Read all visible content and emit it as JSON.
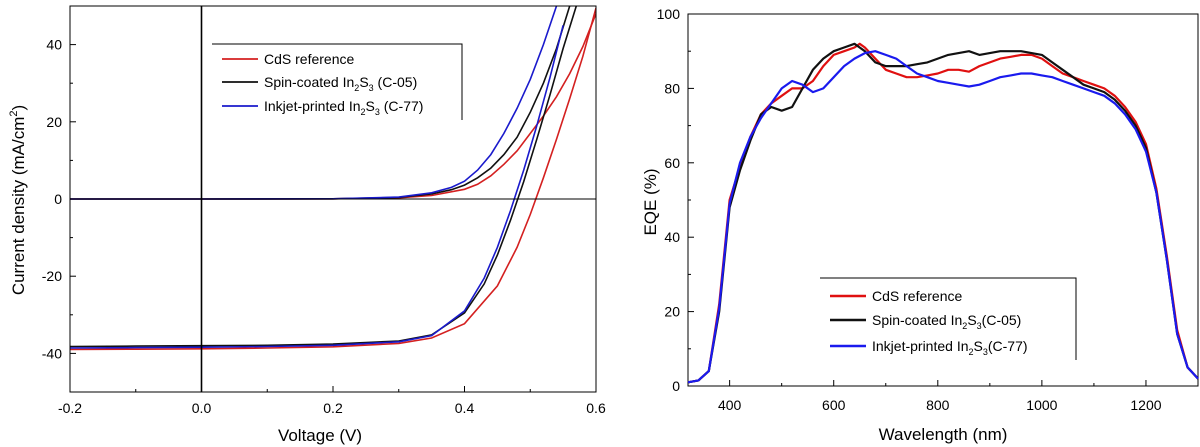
{
  "chart_data": [
    {
      "type": "line",
      "title": "",
      "xlabel": "Voltage (V)",
      "ylabel": "Current density (mA/cm²)",
      "ylabel_parts": {
        "main": "Current density (mA/cm",
        "sup": "2",
        "tail": ")"
      },
      "xlim": [
        -0.2,
        0.6
      ],
      "ylim": [
        -50,
        50
      ],
      "xticks": [
        -0.2,
        0.0,
        0.2,
        0.4,
        0.6
      ],
      "xtick_labels": [
        "-0.2",
        "0.0",
        "0.2",
        "0.4",
        "0.6"
      ],
      "yticks": [
        -40,
        -20,
        0,
        20,
        40
      ],
      "ytick_labels": [
        "-40",
        "-20",
        "0",
        "20",
        "40"
      ],
      "grid": false,
      "zero_lines": true,
      "legend_position": "top-right",
      "series": [
        {
          "name": "CdS reference",
          "legend_parts": [
            {
              "t": "CdS reference"
            }
          ],
          "color": "#d42020",
          "light": {
            "x": [
              -0.2,
              -0.1,
              0,
              0.1,
              0.2,
              0.3,
              0.35,
              0.4,
              0.45,
              0.48,
              0.5,
              0.52,
              0.54,
              0.56,
              0.58,
              0.6
            ],
            "y": [
              -39,
              -38.9,
              -38.8,
              -38.6,
              -38.3,
              -37.4,
              -36.0,
              -32.3,
              -22.5,
              -12.5,
              -4.0,
              5.5,
              15.5,
              26.0,
              37.0,
              49.5
            ]
          },
          "dark": {
            "x": [
              -0.2,
              0,
              0.2,
              0.3,
              0.35,
              0.4,
              0.42,
              0.44,
              0.46,
              0.48,
              0.5,
              0.52,
              0.54,
              0.56,
              0.58,
              0.6
            ],
            "y": [
              0,
              0,
              0.05,
              0.3,
              0.9,
              2.5,
              3.8,
              6.0,
              9.0,
              12.5,
              17.0,
              21.5,
              26.5,
              32.5,
              39.5,
              48.0
            ]
          }
        },
        {
          "name": "Spin-coated In2S3 (C-05)",
          "legend_parts": [
            {
              "t": "Spin-coated In"
            },
            {
              "t": "2",
              "sub": true
            },
            {
              "t": "S"
            },
            {
              "t": "3",
              "sub": true
            },
            {
              "t": " (C-05)"
            }
          ],
          "color": "#111111",
          "light": {
            "x": [
              -0.2,
              -0.1,
              0,
              0.1,
              0.2,
              0.3,
              0.35,
              0.4,
              0.43,
              0.45,
              0.47,
              0.49,
              0.51,
              0.53,
              0.55,
              0.57
            ],
            "y": [
              -38.2,
              -38.1,
              -38.0,
              -37.9,
              -37.6,
              -36.8,
              -35.2,
              -29.5,
              -22.0,
              -14.5,
              -5.5,
              4.5,
              15.5,
              27.0,
              39.0,
              50.0
            ]
          },
          "dark": {
            "x": [
              -0.2,
              0,
              0.2,
              0.3,
              0.35,
              0.38,
              0.4,
              0.42,
              0.44,
              0.46,
              0.48,
              0.5,
              0.52,
              0.54,
              0.56
            ],
            "y": [
              0,
              0,
              0.05,
              0.4,
              1.3,
              2.4,
              3.6,
              5.5,
              8.0,
              11.5,
              16.0,
              22.5,
              30.0,
              39.0,
              50.0
            ]
          }
        },
        {
          "name": "Inkjet-printed In2S3 (C-77)",
          "legend_parts": [
            {
              "t": "Inkjet-printed In"
            },
            {
              "t": "2",
              "sub": true
            },
            {
              "t": "S"
            },
            {
              "t": "3",
              "sub": true
            },
            {
              "t": " (C-77)"
            }
          ],
          "color": "#1a1acc",
          "light": {
            "x": [
              -0.2,
              -0.1,
              0,
              0.1,
              0.2,
              0.3,
              0.35,
              0.4,
              0.43,
              0.45,
              0.47,
              0.49,
              0.51,
              0.53,
              0.55
            ],
            "y": [
              -38.6,
              -38.5,
              -38.4,
              -38.2,
              -37.9,
              -37.0,
              -35.4,
              -29.0,
              -20.5,
              -12.5,
              -3.0,
              7.5,
              19.0,
              31.5,
              45.0
            ]
          },
          "dark": {
            "x": [
              -0.2,
              0,
              0.2,
              0.3,
              0.35,
              0.38,
              0.4,
              0.42,
              0.44,
              0.46,
              0.48,
              0.5,
              0.52,
              0.54
            ],
            "y": [
              0,
              0,
              0.05,
              0.5,
              1.6,
              3.0,
              4.6,
              7.5,
              11.5,
              17.0,
              23.5,
              31.0,
              40.0,
              50.0
            ]
          }
        }
      ]
    },
    {
      "type": "line",
      "title": "",
      "xlabel": "Wavelength (nm)",
      "ylabel": "EQE (%)",
      "xlim": [
        320,
        1300
      ],
      "ylim": [
        0,
        100
      ],
      "xticks": [
        400,
        600,
        800,
        1000,
        1200
      ],
      "xtick_labels": [
        "400",
        "600",
        "800",
        "1000",
        "1200"
      ],
      "yticks": [
        0,
        20,
        40,
        60,
        80,
        100
      ],
      "ytick_labels": [
        "0",
        "20",
        "40",
        "60",
        "80",
        "100"
      ],
      "grid": false,
      "legend_position": "bottom-center",
      "series": [
        {
          "name": "CdS reference",
          "legend_parts": [
            {
              "t": "CdS reference"
            }
          ],
          "color": "#e01010",
          "x": [
            320,
            340,
            360,
            380,
            400,
            420,
            440,
            460,
            480,
            500,
            520,
            540,
            560,
            580,
            600,
            620,
            640,
            650,
            660,
            680,
            700,
            720,
            740,
            760,
            780,
            800,
            820,
            840,
            860,
            880,
            900,
            920,
            940,
            960,
            980,
            1000,
            1020,
            1040,
            1060,
            1080,
            1100,
            1120,
            1140,
            1160,
            1180,
            1200,
            1220,
            1240,
            1260,
            1280,
            1300
          ],
          "y": [
            1,
            1.5,
            4,
            22,
            50,
            59,
            67,
            73,
            76,
            78,
            80,
            80,
            82,
            86,
            89,
            90,
            91,
            92,
            91,
            88,
            85,
            84,
            83,
            83,
            83.5,
            84,
            85,
            85,
            84.5,
            86,
            87,
            88,
            88.5,
            89,
            89,
            88,
            86,
            84,
            83,
            82,
            81,
            80,
            78,
            75,
            71,
            65,
            53,
            35,
            15,
            5,
            2
          ]
        },
        {
          "name": "Spin-coated In2S3(C-05)",
          "legend_parts": [
            {
              "t": "Spin-coated In"
            },
            {
              "t": "2",
              "sub": true
            },
            {
              "t": "S"
            },
            {
              "t": "3",
              "sub": true
            },
            {
              "t": "(C-05)"
            }
          ],
          "color": "#111111",
          "x": [
            320,
            340,
            360,
            380,
            400,
            420,
            440,
            460,
            480,
            500,
            520,
            540,
            560,
            580,
            600,
            620,
            640,
            650,
            660,
            680,
            700,
            720,
            740,
            760,
            780,
            800,
            820,
            840,
            860,
            880,
            900,
            920,
            940,
            960,
            980,
            1000,
            1020,
            1040,
            1060,
            1080,
            1100,
            1120,
            1140,
            1160,
            1180,
            1200,
            1220,
            1240,
            1260,
            1280,
            1300
          ],
          "y": [
            1,
            1.5,
            4,
            20,
            48,
            58,
            66,
            73,
            75,
            74,
            75,
            80,
            85,
            88,
            90,
            91,
            92,
            91,
            90,
            87,
            86,
            86,
            86,
            86.5,
            87,
            88,
            89,
            89.5,
            90,
            89,
            89.5,
            90,
            90,
            90,
            89.5,
            89,
            87,
            85,
            83,
            81,
            80,
            79,
            77,
            74,
            70,
            64,
            52,
            34,
            14,
            5,
            2
          ]
        },
        {
          "name": "Inkjet-printed In2S3(C-77)",
          "legend_parts": [
            {
              "t": "Inkjet-printed In"
            },
            {
              "t": "2",
              "sub": true
            },
            {
              "t": "S"
            },
            {
              "t": "3",
              "sub": true
            },
            {
              "t": "(C-77)"
            }
          ],
          "color": "#1a1aee",
          "x": [
            320,
            340,
            360,
            380,
            400,
            420,
            440,
            460,
            480,
            500,
            520,
            540,
            560,
            580,
            600,
            620,
            640,
            660,
            680,
            700,
            720,
            740,
            760,
            780,
            800,
            820,
            840,
            860,
            880,
            900,
            920,
            940,
            960,
            980,
            1000,
            1020,
            1040,
            1060,
            1080,
            1100,
            1120,
            1140,
            1160,
            1180,
            1200,
            1220,
            1240,
            1260,
            1280,
            1300
          ],
          "y": [
            1,
            1.5,
            4,
            21,
            49,
            60,
            67,
            72,
            76,
            80,
            82,
            81,
            79,
            80,
            83,
            86,
            88,
            89.5,
            90,
            89,
            88,
            86,
            84,
            83,
            82,
            81.5,
            81,
            80.5,
            81,
            82,
            83,
            83.5,
            84,
            84,
            83.5,
            83,
            82,
            81,
            80,
            79,
            78,
            76,
            73,
            69,
            63,
            52,
            34,
            14,
            5,
            2
          ]
        }
      ]
    }
  ]
}
